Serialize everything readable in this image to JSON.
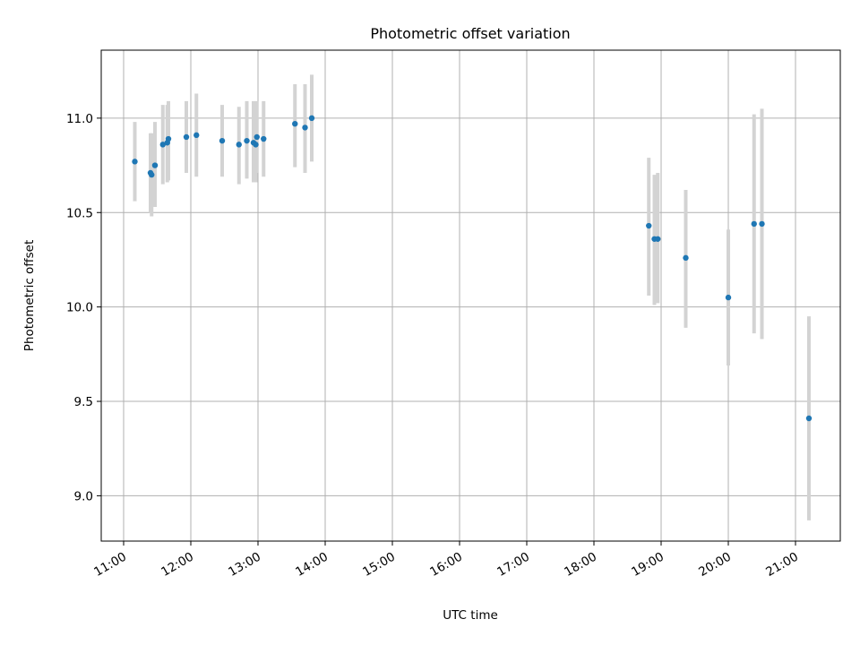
{
  "chart_data": {
    "type": "scatter",
    "title": "Photometric offset variation",
    "xlabel": "UTC time",
    "ylabel": "Photometric offset",
    "grid": true,
    "x_unit": "UTC time (HH:MM)",
    "xlim": [
      "10:40",
      "21:40"
    ],
    "ylim": [
      8.76,
      11.36
    ],
    "x_ticks": [
      "11:00",
      "12:00",
      "13:00",
      "14:00",
      "15:00",
      "16:00",
      "17:00",
      "18:00",
      "19:00",
      "20:00",
      "21:00"
    ],
    "y_ticks": [
      9.0,
      9.5,
      10.0,
      10.5,
      11.0
    ],
    "y_tick_labels": [
      "9.0",
      "9.5",
      "10.0",
      "10.5",
      "11.0"
    ],
    "marker_color": "#1f77b4",
    "errorbar_color": "#d3d3d3",
    "points": [
      {
        "x": "11:10",
        "y": 10.77,
        "ylo": 10.56,
        "yhi": 10.98
      },
      {
        "x": "11:24",
        "y": 10.71,
        "ylo": 10.5,
        "yhi": 10.92
      },
      {
        "x": "11:25",
        "y": 10.7,
        "ylo": 10.48,
        "yhi": 10.92
      },
      {
        "x": "11:28",
        "y": 10.75,
        "ylo": 10.53,
        "yhi": 10.98
      },
      {
        "x": "11:35",
        "y": 10.86,
        "ylo": 10.65,
        "yhi": 11.07
      },
      {
        "x": "11:39",
        "y": 10.87,
        "ylo": 10.66,
        "yhi": 11.07
      },
      {
        "x": "11:40",
        "y": 10.89,
        "ylo": 10.67,
        "yhi": 11.09
      },
      {
        "x": "11:56",
        "y": 10.9,
        "ylo": 10.71,
        "yhi": 11.09
      },
      {
        "x": "12:05",
        "y": 10.91,
        "ylo": 10.69,
        "yhi": 11.13
      },
      {
        "x": "12:28",
        "y": 10.88,
        "ylo": 10.69,
        "yhi": 11.07
      },
      {
        "x": "12:43",
        "y": 10.86,
        "ylo": 10.65,
        "yhi": 11.06
      },
      {
        "x": "12:50",
        "y": 10.88,
        "ylo": 10.68,
        "yhi": 11.09
      },
      {
        "x": "12:56",
        "y": 10.87,
        "ylo": 10.66,
        "yhi": 11.09
      },
      {
        "x": "12:58",
        "y": 10.86,
        "ylo": 10.66,
        "yhi": 11.07
      },
      {
        "x": "12:59",
        "y": 10.9,
        "ylo": 10.71,
        "yhi": 11.09
      },
      {
        "x": "13:05",
        "y": 10.89,
        "ylo": 10.69,
        "yhi": 11.09
      },
      {
        "x": "13:33",
        "y": 10.97,
        "ylo": 10.74,
        "yhi": 11.18
      },
      {
        "x": "13:42",
        "y": 10.95,
        "ylo": 10.71,
        "yhi": 11.18
      },
      {
        "x": "13:48",
        "y": 11.0,
        "ylo": 10.77,
        "yhi": 11.23
      },
      {
        "x": "18:49",
        "y": 10.43,
        "ylo": 10.06,
        "yhi": 10.79
      },
      {
        "x": "18:54",
        "y": 10.36,
        "ylo": 10.01,
        "yhi": 10.7
      },
      {
        "x": "18:57",
        "y": 10.36,
        "ylo": 10.02,
        "yhi": 10.71
      },
      {
        "x": "19:22",
        "y": 10.26,
        "ylo": 9.89,
        "yhi": 10.62
      },
      {
        "x": "20:00",
        "y": 10.05,
        "ylo": 9.69,
        "yhi": 10.41
      },
      {
        "x": "20:23",
        "y": 10.44,
        "ylo": 9.86,
        "yhi": 11.02
      },
      {
        "x": "20:30",
        "y": 10.44,
        "ylo": 9.83,
        "yhi": 11.05
      },
      {
        "x": "21:12",
        "y": 9.41,
        "ylo": 8.87,
        "yhi": 9.95
      }
    ]
  }
}
